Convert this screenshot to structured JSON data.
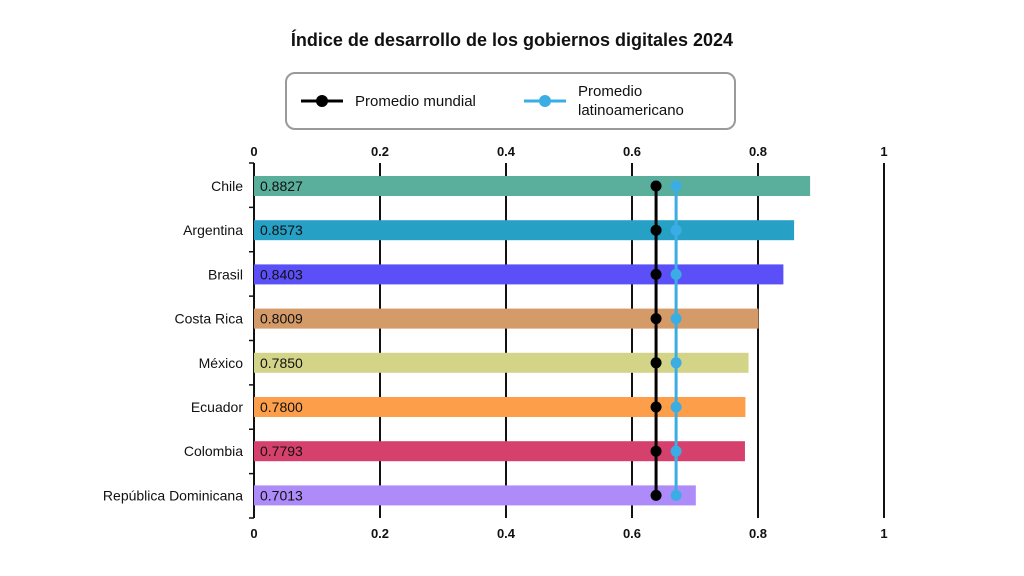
{
  "chart_data": {
    "type": "bar",
    "orientation": "horizontal",
    "title": "Índice de desarrollo de los gobiernos digitales 2024",
    "categories": [
      "Chile",
      "Argentina",
      "Brasil",
      "Costa Rica",
      "México",
      "Ecuador",
      "Colombia",
      "República Dominicana"
    ],
    "values": [
      0.8827,
      0.8573,
      0.8403,
      0.8009,
      0.785,
      0.78,
      0.7793,
      0.7013
    ],
    "value_labels": [
      "0.8827",
      "0.8573",
      "0.8403",
      "0.8009",
      "0.7850",
      "0.7800",
      "0.7793",
      "0.7013"
    ],
    "bar_colors": [
      "#5aae9c",
      "#27a0c6",
      "#5b50f8",
      "#d49a68",
      "#d4d489",
      "#fd9f4a",
      "#d6406c",
      "#ad8bf8"
    ],
    "xlim": [
      0,
      1
    ],
    "x_ticks": [
      "0",
      "0.2",
      "0.4",
      "0.6",
      "0.8",
      "1"
    ],
    "x_tick_values": [
      0,
      0.2,
      0.4,
      0.6,
      0.8,
      1
    ],
    "grid": true,
    "reference_lines": [
      {
        "name": "Promedio mundial",
        "value": 0.6382,
        "color": "#000000"
      },
      {
        "name": "Promedio latinoamericano",
        "value": 0.67,
        "color": "#3aaee4"
      }
    ],
    "legend_position": "top"
  }
}
